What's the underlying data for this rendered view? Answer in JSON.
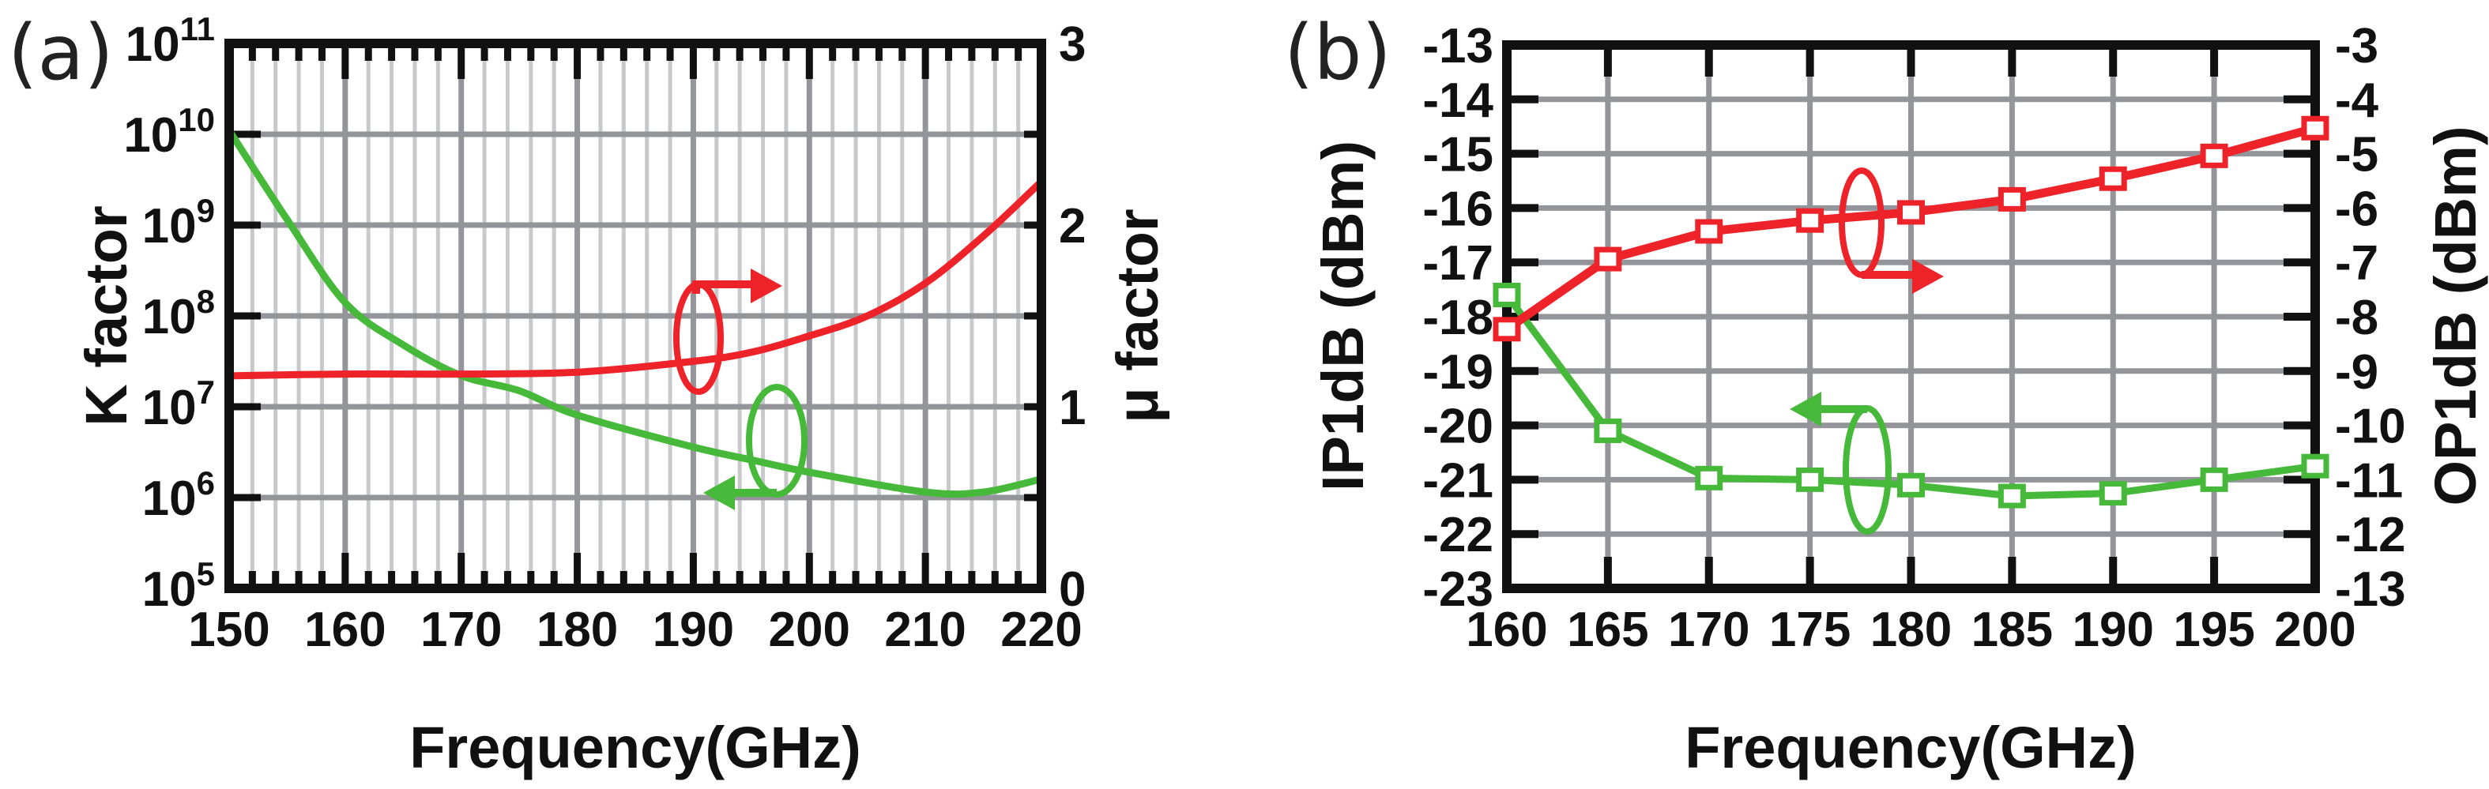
{
  "chart_data": [
    {
      "type": "line",
      "panel_label": "(a)",
      "xlabel": "Frequency(GHz)",
      "ylabel_left": "K factor",
      "ylabel_right": "μ factor",
      "xlim": [
        150,
        220
      ],
      "x_ticks": [
        "150",
        "160",
        "170",
        "180",
        "190",
        "200",
        "210",
        "220"
      ],
      "ylim_left": [
        100000,
        100000000000
      ],
      "y_scale_left": "log",
      "y_ticks_left": [
        {
          "base": "10",
          "exp": "5"
        },
        {
          "base": "10",
          "exp": "6"
        },
        {
          "base": "10",
          "exp": "7"
        },
        {
          "base": "10",
          "exp": "8"
        },
        {
          "base": "10",
          "exp": "9"
        },
        {
          "base": "10",
          "exp": "10"
        },
        {
          "base": "10",
          "exp": "11"
        }
      ],
      "ylim_right": [
        0,
        3
      ],
      "y_ticks_right": [
        "0",
        "1",
        "2",
        "3"
      ],
      "grid": true,
      "series": [
        {
          "name": "K factor",
          "axis": "left",
          "color": "#46b83a",
          "x": [
            150,
            155,
            160,
            165,
            170,
            175,
            180,
            190,
            195,
            200,
            210,
            215,
            220
          ],
          "y": [
            11000000000.0,
            1150000000.0,
            140000000.0,
            48000000.0,
            22000000.0,
            15000000.0,
            8100000.0,
            3600000.0,
            2600000.0,
            1900000.0,
            1150000.0,
            1150000.0,
            1600000.0
          ]
        },
        {
          "name": "μ factor",
          "axis": "right",
          "color": "#ee2229",
          "x": [
            150,
            160,
            170,
            180,
            190,
            195,
            200,
            205,
            210,
            215,
            220
          ],
          "y": [
            1.17,
            1.18,
            1.18,
            1.19,
            1.25,
            1.3,
            1.39,
            1.5,
            1.68,
            1.94,
            2.24
          ]
        }
      ]
    },
    {
      "type": "line",
      "panel_label": "(b)",
      "xlabel": "Frequency(GHz)",
      "ylabel_left": "IP1dB (dBm)",
      "ylabel_right": "OP1dB (dBm)",
      "xlim": [
        160,
        200
      ],
      "x_ticks": [
        "160",
        "165",
        "170",
        "175",
        "180",
        "185",
        "190",
        "195",
        "200"
      ],
      "ylim_left": [
        -23,
        -13
      ],
      "y_ticks_left": [
        "-23",
        "-22",
        "-21",
        "-20",
        "-19",
        "-18",
        "-17",
        "-16",
        "-15",
        "-14",
        "-13"
      ],
      "ylim_right": [
        -13,
        -3
      ],
      "y_ticks_right": [
        "-13",
        "-12",
        "-11",
        "-10",
        "-9",
        "-8",
        "-7",
        "-6",
        "-5",
        "-4",
        "-3"
      ],
      "grid": true,
      "series": [
        {
          "name": "IP1dB",
          "axis": "left",
          "color": "#46b83a",
          "marker": "square",
          "x": [
            160,
            165,
            170,
            175,
            180,
            185,
            190,
            195,
            200
          ],
          "y": [
            -17.6,
            -20.1,
            -20.97,
            -21.0,
            -21.1,
            -21.3,
            -21.25,
            -21.0,
            -20.75
          ]
        },
        {
          "name": "OP1dB",
          "axis": "right",
          "color": "#ee2229",
          "marker": "square",
          "x": [
            160,
            165,
            170,
            175,
            180,
            185,
            190,
            195,
            200
          ],
          "y": [
            -8.23,
            -6.94,
            -6.43,
            -6.23,
            -6.08,
            -5.84,
            -5.46,
            -5.04,
            -4.53
          ]
        }
      ]
    }
  ]
}
